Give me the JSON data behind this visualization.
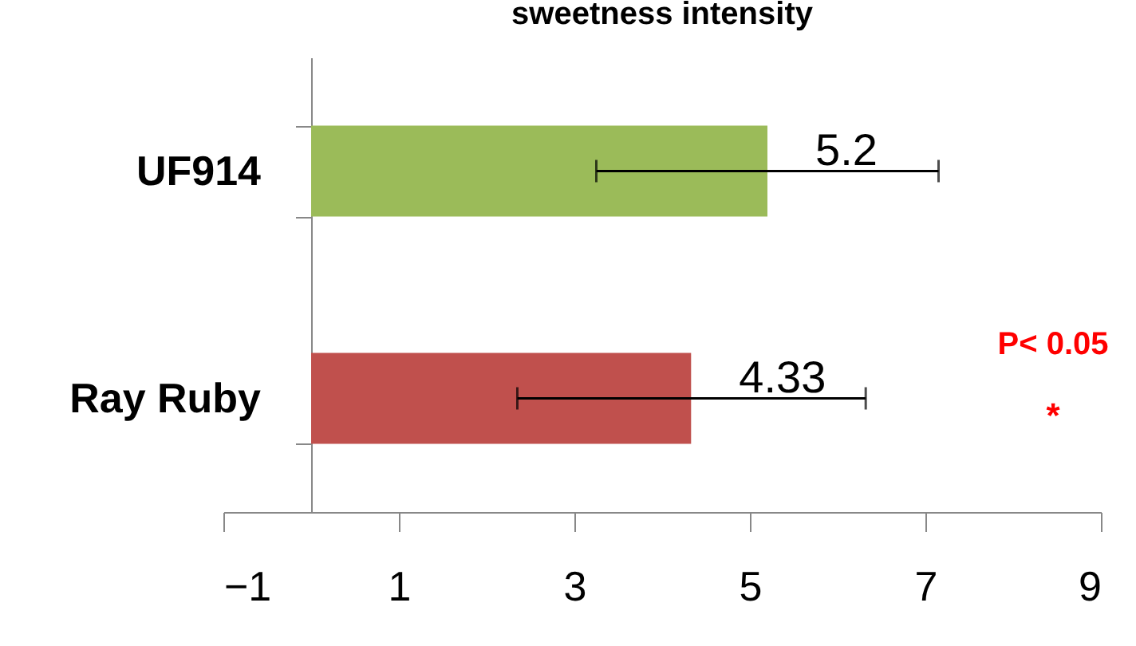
{
  "chart_data": {
    "type": "bar",
    "orientation": "horizontal",
    "title": "sweetness intensity",
    "categories": [
      "UF914",
      "Ray Ruby"
    ],
    "values": [
      5.2,
      4.33
    ],
    "colors": [
      "#9bbb59",
      "#c0504d"
    ],
    "errors": [
      [
        3.25,
        7.15
      ],
      [
        2.35,
        6.32
      ]
    ],
    "data_labels": true,
    "xlim": [
      -1,
      9
    ],
    "xticks": [
      -1,
      1,
      3,
      5,
      7,
      9
    ],
    "grid": false,
    "annotations": [
      "P< 0.05",
      "*"
    ]
  }
}
